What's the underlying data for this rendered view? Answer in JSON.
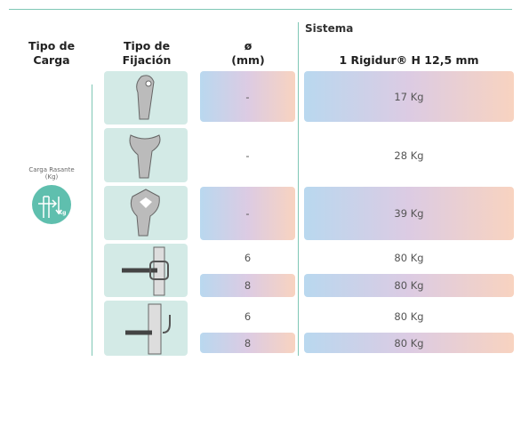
{
  "header": {
    "section": "Sistema",
    "columns": [
      "Tipo de Carga",
      "Tipo de Fijación",
      "ø (mm)",
      "1 Rigidur® H 12,5 mm"
    ]
  },
  "load_type": {
    "label": "Carga Rasante",
    "unit": "(Kg)",
    "icon_text": "Kg"
  },
  "rows": [
    {
      "entries": [
        {
          "diameter": "-",
          "load": "17 Kg"
        }
      ]
    },
    {
      "entries": [
        {
          "diameter": "-",
          "load": "28 Kg"
        }
      ]
    },
    {
      "entries": [
        {
          "diameter": "-",
          "load": "39 Kg"
        }
      ]
    },
    {
      "entries": [
        {
          "diameter": "6",
          "load": "80 Kg"
        },
        {
          "diameter": "8",
          "load": "80 Kg"
        }
      ]
    },
    {
      "entries": [
        {
          "diameter": "6",
          "load": "80 Kg"
        },
        {
          "diameter": "8",
          "load": "80 Kg"
        }
      ]
    }
  ]
}
